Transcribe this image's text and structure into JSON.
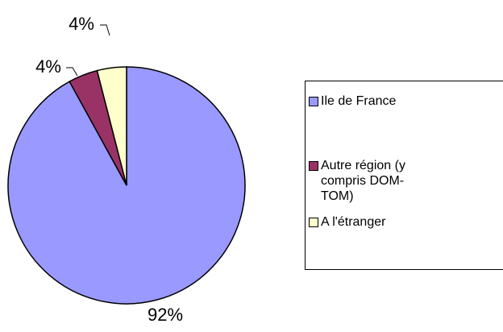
{
  "chart_data": {
    "type": "pie",
    "categories": [
      "Ile de France",
      "Autre région (y compris DOM-TOM)",
      "A l'étranger"
    ],
    "values": [
      92,
      4,
      4
    ],
    "value_labels": [
      "92%",
      "4%",
      "4%"
    ],
    "colors": [
      "#9999ff",
      "#993366",
      "#ffffcc"
    ],
    "legend": "right"
  }
}
